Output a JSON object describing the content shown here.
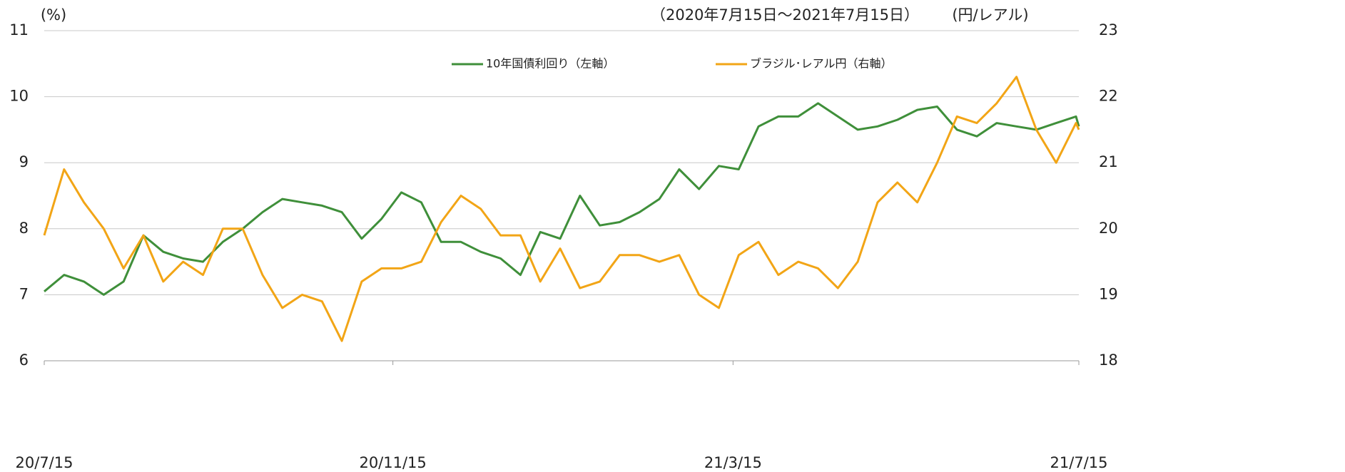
{
  "chart_data": {
    "type": "line",
    "subtitle": "（2020年7月15日～2021年7月15日）",
    "y_label": "(%)",
    "y2_label": "(円/レアル)",
    "x": [
      "20/7/15",
      "20/7/22",
      "20/7/29",
      "20/8/5",
      "20/8/12",
      "20/8/19",
      "20/8/26",
      "20/9/2",
      "20/9/9",
      "20/9/16",
      "20/9/23",
      "20/9/30",
      "20/10/7",
      "20/10/14",
      "20/10/21",
      "20/10/28",
      "20/11/4",
      "20/11/11",
      "20/11/18",
      "20/11/25",
      "20/12/2",
      "20/12/9",
      "20/12/16",
      "20/12/23",
      "20/12/30",
      "21/1/6",
      "21/1/13",
      "21/1/20",
      "21/1/27",
      "21/2/3",
      "21/2/10",
      "21/2/17",
      "21/2/24",
      "21/3/3",
      "21/3/10",
      "21/3/17",
      "21/3/24",
      "21/3/31",
      "21/4/7",
      "21/4/14",
      "21/4/21",
      "21/4/28",
      "21/5/5",
      "21/5/12",
      "21/5/19",
      "21/5/26",
      "21/6/2",
      "21/6/9",
      "21/6/16",
      "21/6/23",
      "21/6/30",
      "21/7/7",
      "21/7/14",
      "21/7/15"
    ],
    "series": [
      {
        "name": "10年国債利回り（左軸）",
        "color": "#3f8f3a",
        "axis": "y",
        "values": [
          7.05,
          7.3,
          7.2,
          7.0,
          7.2,
          7.9,
          7.65,
          7.55,
          7.5,
          7.8,
          8.0,
          8.25,
          8.45,
          8.4,
          8.35,
          8.25,
          7.85,
          8.15,
          8.55,
          8.4,
          7.8,
          7.8,
          7.65,
          7.55,
          7.3,
          7.95,
          7.85,
          8.5,
          8.05,
          8.1,
          8.25,
          8.45,
          8.9,
          8.6,
          8.95,
          8.9,
          9.55,
          9.7,
          9.7,
          9.9,
          9.7,
          9.5,
          9.55,
          9.65,
          9.8,
          9.85,
          9.5,
          9.4,
          9.6,
          9.55,
          9.5,
          9.6,
          9.7,
          9.55
        ]
      },
      {
        "name": "ブラジル･レアル円（右軸）",
        "color": "#f2a516",
        "axis": "y2",
        "values": [
          19.9,
          20.9,
          20.4,
          20.0,
          19.4,
          19.9,
          19.2,
          19.5,
          19.3,
          20.0,
          20.0,
          19.3,
          18.8,
          19.0,
          18.9,
          18.3,
          19.2,
          19.4,
          19.4,
          19.5,
          20.1,
          20.5,
          20.3,
          19.9,
          19.9,
          19.2,
          19.7,
          19.1,
          19.2,
          19.6,
          19.6,
          19.5,
          19.6,
          19.0,
          18.8,
          19.6,
          19.8,
          19.3,
          19.5,
          19.4,
          19.1,
          19.5,
          20.4,
          20.7,
          20.4,
          21.0,
          21.7,
          21.6,
          21.9,
          22.3,
          21.5,
          21.0,
          21.6,
          21.5
        ]
      }
    ],
    "xlim": [
      "20/7/15",
      "21/7/15"
    ],
    "xticks": [
      "20/7/15",
      "20/11/15",
      "21/3/15",
      "21/7/15"
    ],
    "ylim": [
      6,
      11
    ],
    "yticks": [
      6,
      7,
      8,
      9,
      10,
      11
    ],
    "y2lim": [
      18,
      23
    ],
    "y2ticks": [
      18,
      19,
      20,
      21,
      22,
      23
    ],
    "grid": true
  }
}
